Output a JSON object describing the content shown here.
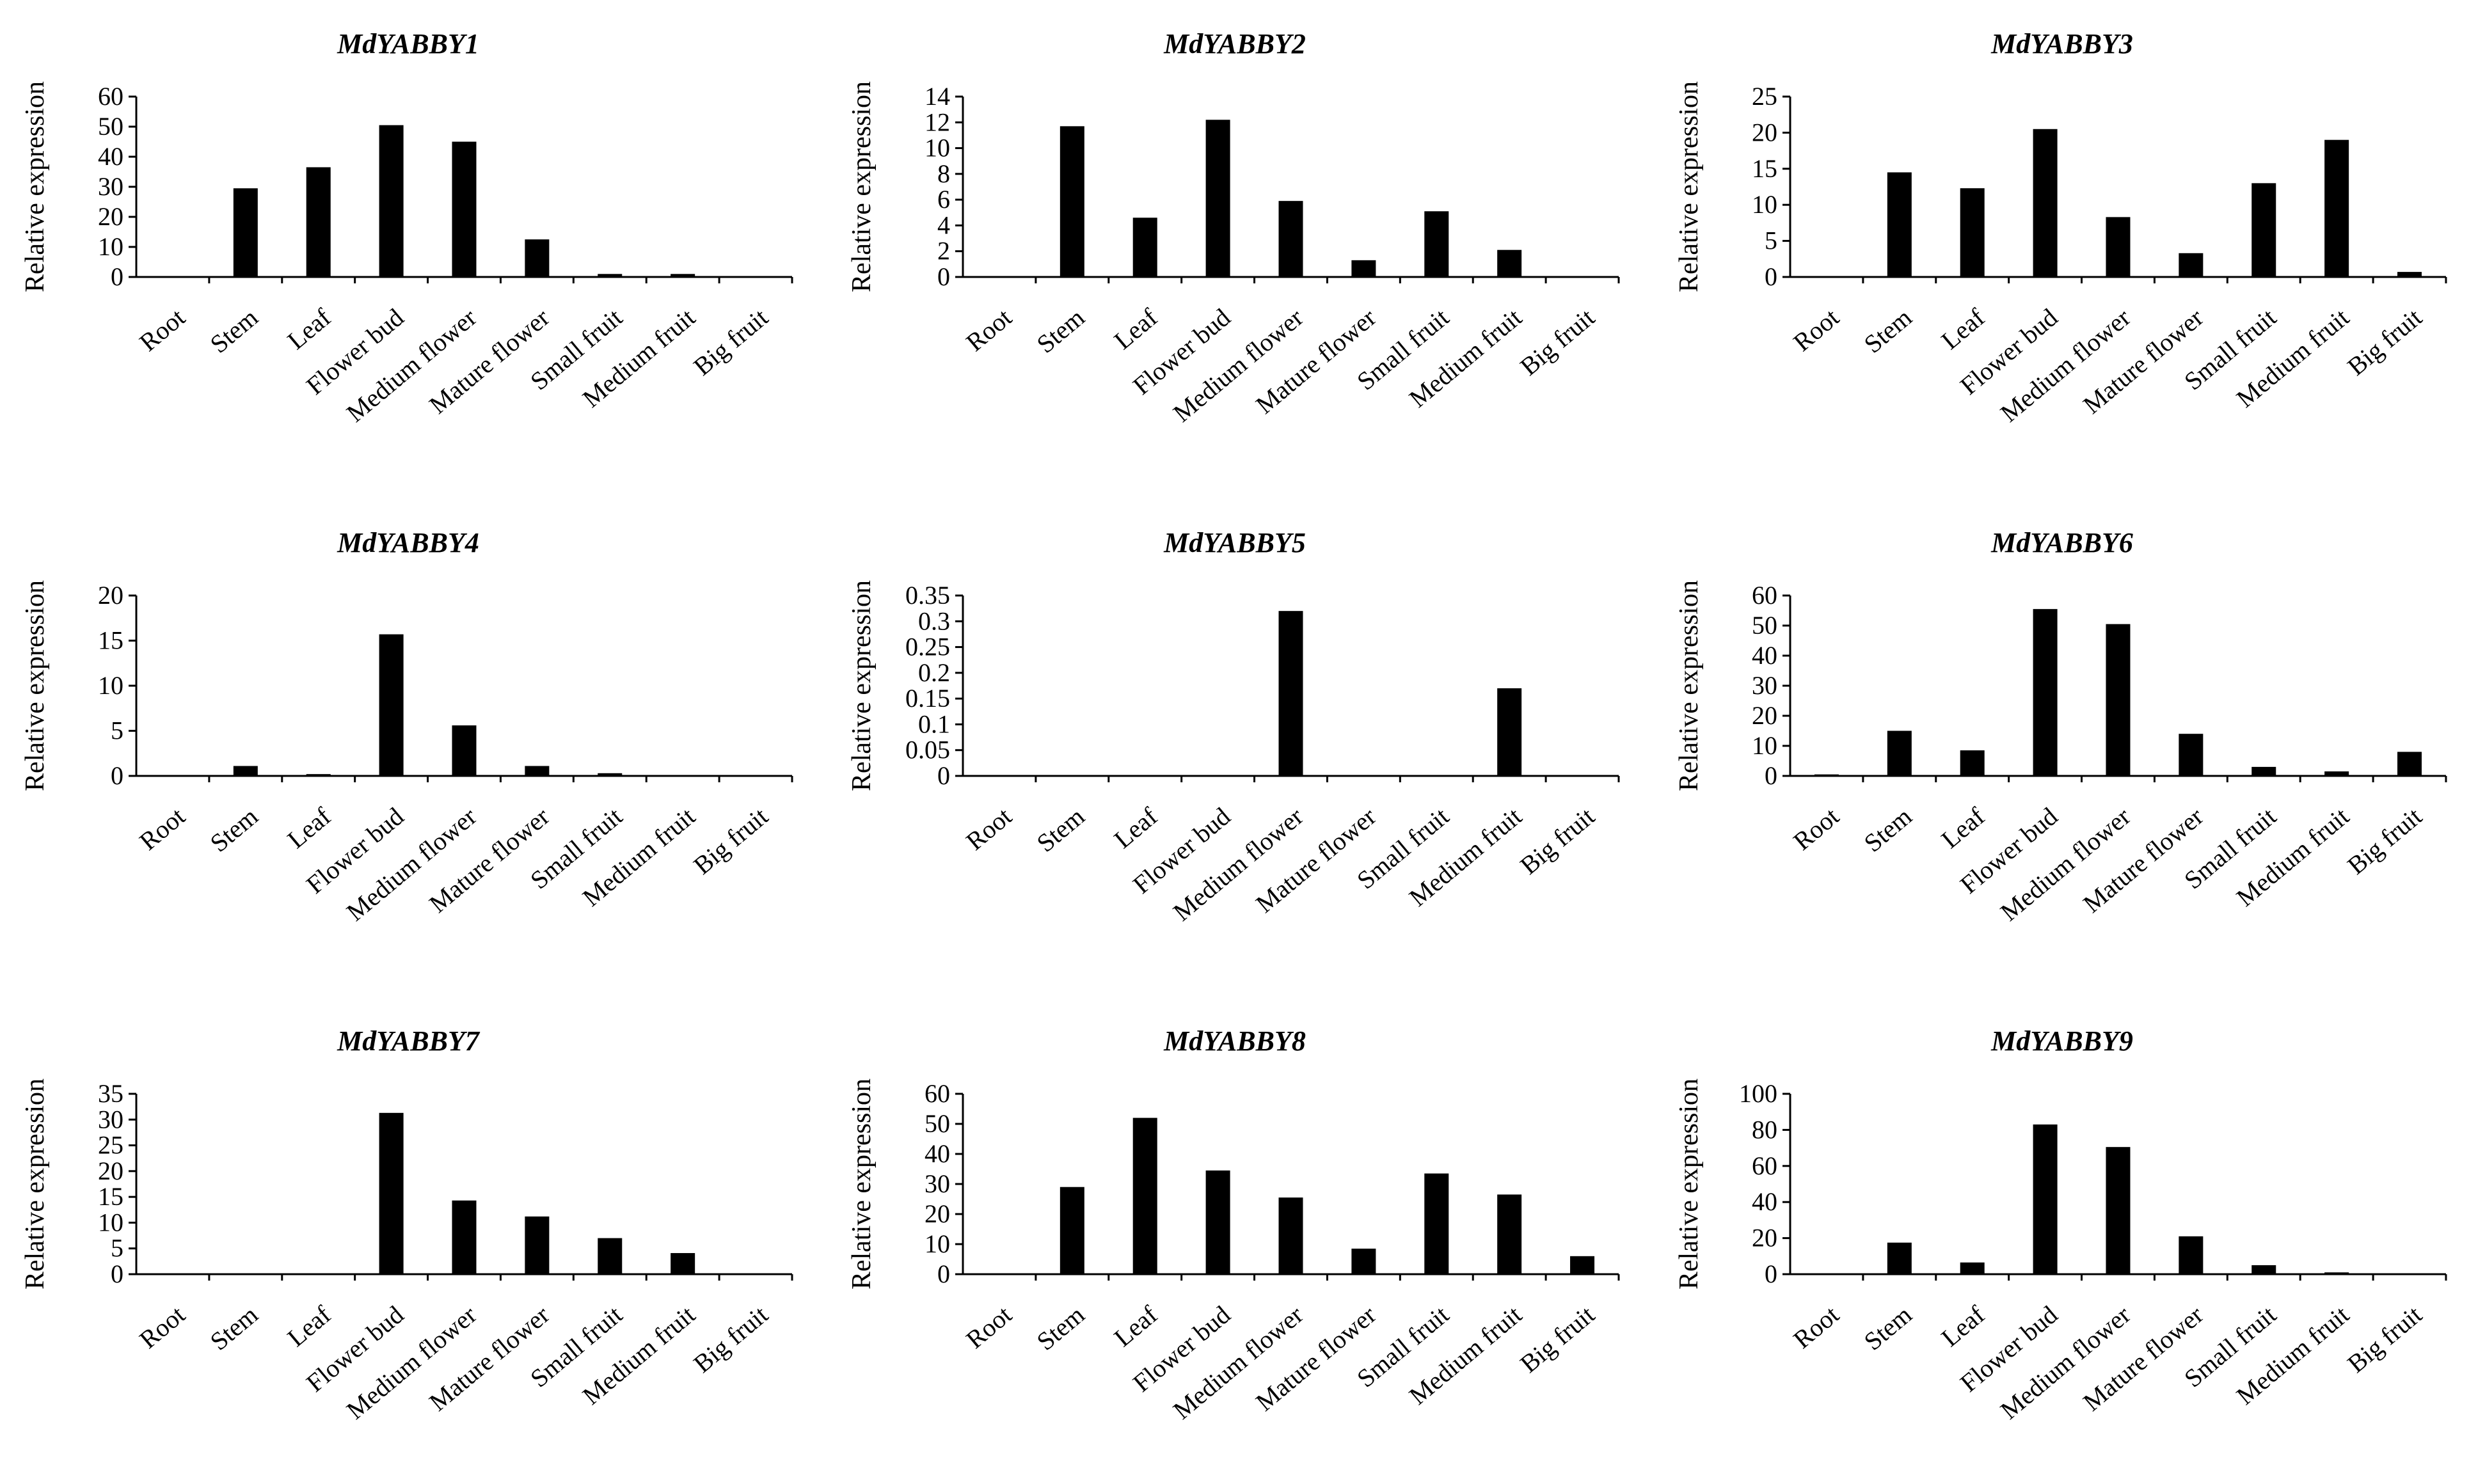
{
  "chart_data": [
    {
      "type": "bar",
      "title": "MdYABBY1",
      "xlabel": "",
      "ylabel": "Relative expression",
      "categories": [
        "Root",
        "Stem",
        "Leaf",
        "Flower bud",
        "Medium flower",
        "Mature flower",
        "Small fruit",
        "Medium fruit",
        "Big fruit"
      ],
      "values": [
        0,
        29.5,
        36.5,
        50.5,
        45,
        12.5,
        1,
        1,
        0
      ],
      "ylim": [
        0,
        60
      ],
      "yticks": [
        "0",
        "10",
        "20",
        "30",
        "40",
        "50",
        "60"
      ]
    },
    {
      "type": "bar",
      "title": "MdYABBY2",
      "xlabel": "",
      "ylabel": "Relative expression",
      "categories": [
        "Root",
        "Stem",
        "Leaf",
        "Flower bud",
        "Medium flower",
        "Mature flower",
        "Small fruit",
        "Medium fruit",
        "Big fruit"
      ],
      "values": [
        0,
        11.7,
        4.6,
        12.2,
        5.9,
        1.3,
        5.1,
        2.1,
        0
      ],
      "ylim": [
        0,
        14
      ],
      "yticks": [
        "0",
        "2",
        "4",
        "6",
        "8",
        "10",
        "12",
        "14"
      ]
    },
    {
      "type": "bar",
      "title": "MdYABBY3",
      "xlabel": "",
      "ylabel": "Relative expression",
      "categories": [
        "Root",
        "Stem",
        "Leaf",
        "Flower bud",
        "Medium flower",
        "Mature flower",
        "Small fruit",
        "Medium fruit",
        "Big fruit"
      ],
      "values": [
        0,
        14.5,
        12.3,
        20.5,
        8.3,
        3.3,
        13,
        19,
        0.7
      ],
      "ylim": [
        0,
        25
      ],
      "yticks": [
        "0",
        "5",
        "10",
        "15",
        "20",
        "25"
      ]
    },
    {
      "type": "bar",
      "title": "MdYABBY4",
      "xlabel": "",
      "ylabel": "Relative expression",
      "categories": [
        "Root",
        "Stem",
        "Leaf",
        "Flower bud",
        "Medium flower",
        "Mature flower",
        "Small fruit",
        "Medium fruit",
        "Big fruit"
      ],
      "values": [
        0,
        1.1,
        0.2,
        15.7,
        5.6,
        1.1,
        0.3,
        0,
        0
      ],
      "ylim": [
        0,
        20
      ],
      "yticks": [
        "0",
        "5",
        "10",
        "15",
        "20"
      ]
    },
    {
      "type": "bar",
      "title": "MdYABBY5",
      "xlabel": "",
      "ylabel": "Relative expression",
      "categories": [
        "Root",
        "Stem",
        "Leaf",
        "Flower bud",
        "Medium flower",
        "Mature flower",
        "Small fruit",
        "Medium fruit",
        "Big fruit"
      ],
      "values": [
        0,
        0,
        0,
        0,
        0.32,
        0,
        0,
        0.17,
        0
      ],
      "ylim": [
        0,
        0.35
      ],
      "yticks": [
        "0",
        "0.05",
        "0.1",
        "0.15",
        "0.2",
        "0.25",
        "0.3",
        "0.35"
      ]
    },
    {
      "type": "bar",
      "title": "MdYABBY6",
      "xlabel": "",
      "ylabel": "Relative expression",
      "categories": [
        "Root",
        "Stem",
        "Leaf",
        "Flower bud",
        "Medium flower",
        "Mature flower",
        "Small fruit",
        "Medium fruit",
        "Big fruit"
      ],
      "values": [
        0.5,
        15,
        8.5,
        55.5,
        50.5,
        14,
        3,
        1.5,
        8
      ],
      "ylim": [
        0,
        60
      ],
      "yticks": [
        "0",
        "10",
        "20",
        "30",
        "40",
        "50",
        "60"
      ]
    },
    {
      "type": "bar",
      "title": "MdYABBY7",
      "xlabel": "",
      "ylabel": "Relative expression",
      "categories": [
        "Root",
        "Stem",
        "Leaf",
        "Flower bud",
        "Medium flower",
        "Mature flower",
        "Small fruit",
        "Medium fruit",
        "Big fruit"
      ],
      "values": [
        0,
        0,
        0,
        31.3,
        14.3,
        11.2,
        7,
        4.1,
        0
      ],
      "ylim": [
        0,
        35
      ],
      "yticks": [
        "0",
        "5",
        "10",
        "15",
        "20",
        "25",
        "30",
        "35"
      ]
    },
    {
      "type": "bar",
      "title": "MdYABBY8",
      "xlabel": "",
      "ylabel": "Relative expression",
      "categories": [
        "Root",
        "Stem",
        "Leaf",
        "Flower bud",
        "Medium flower",
        "Mature flower",
        "Small fruit",
        "Medium fruit",
        "Big fruit"
      ],
      "values": [
        0,
        29,
        52,
        34.5,
        25.5,
        8.5,
        33.5,
        26.5,
        6
      ],
      "ylim": [
        0,
        60
      ],
      "yticks": [
        "0",
        "10",
        "20",
        "30",
        "40",
        "50",
        "60"
      ]
    },
    {
      "type": "bar",
      "title": "MdYABBY9",
      "xlabel": "",
      "ylabel": "Relative expression",
      "categories": [
        "Root",
        "Stem",
        "Leaf",
        "Flower bud",
        "Medium flower",
        "Mature flower",
        "Small fruit",
        "Medium fruit",
        "Big fruit"
      ],
      "values": [
        0,
        17.5,
        6.5,
        83,
        70.5,
        21,
        5,
        1,
        0
      ],
      "ylim": [
        0,
        100
      ],
      "yticks": [
        "0",
        "20",
        "40",
        "60",
        "80",
        "100"
      ]
    }
  ]
}
